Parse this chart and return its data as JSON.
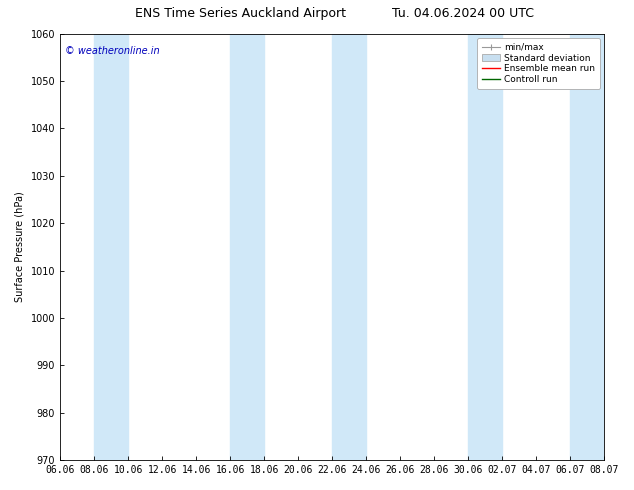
{
  "title": "ENS Time Series Auckland Airport",
  "title2": "Tu. 04.06.2024 00 UTC",
  "ylabel": "Surface Pressure (hPa)",
  "ylim": [
    970,
    1060
  ],
  "yticks": [
    970,
    980,
    990,
    1000,
    1010,
    1020,
    1030,
    1040,
    1050,
    1060
  ],
  "xtick_labels": [
    "06.06",
    "08.06",
    "10.06",
    "12.06",
    "14.06",
    "16.06",
    "18.06",
    "20.06",
    "22.06",
    "24.06",
    "26.06",
    "28.06",
    "30.06",
    "02.07",
    "04.07",
    "06.07",
    "08.07"
  ],
  "watermark": "© weatheronline.in",
  "watermark_color": "#0000bb",
  "band_color": "#d0e8f8",
  "band_alpha": 1.0,
  "background_color": "#ffffff",
  "legend_labels": [
    "min/max",
    "Standard deviation",
    "Ensemble mean run",
    "Controll run"
  ],
  "legend_colors": [
    "#999999",
    "#c8dff0",
    "#ff0000",
    "#006600"
  ],
  "title_fontsize": 9,
  "axis_fontsize": 7,
  "tick_fontsize": 7,
  "shaded_indices": [
    1,
    5,
    7,
    11,
    13,
    15
  ]
}
